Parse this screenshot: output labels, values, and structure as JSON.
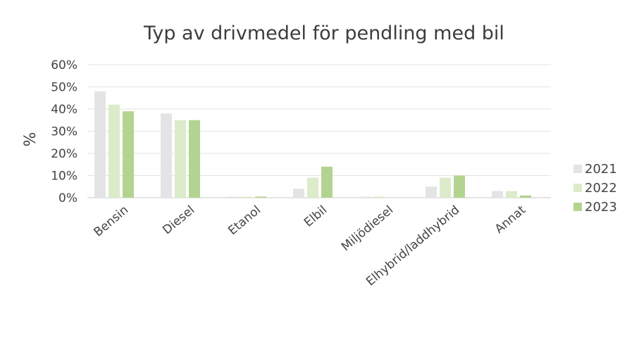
{
  "chart_data": {
    "type": "bar",
    "title": "Typ av drivmedel för pendling med bil",
    "xlabel": "",
    "ylabel": "%",
    "ylim": [
      0,
      60
    ],
    "yticks": [
      "0%",
      "10%",
      "20%",
      "30%",
      "40%",
      "50%",
      "60%"
    ],
    "grid": true,
    "legend_position": "right",
    "categories": [
      "Bensin",
      "Diesel",
      "Etanol",
      "Elbil",
      "Miljödiesel",
      "Elhybrid/laddhybrid",
      "Annat"
    ],
    "series": [
      {
        "name": "2021",
        "color": "#e4e4e6",
        "values": [
          48,
          38,
          0.5,
          4,
          0.5,
          5,
          3
        ]
      },
      {
        "name": "2022",
        "color": "#dcebc9",
        "values": [
          42,
          35,
          0.5,
          9,
          0.5,
          9,
          3
        ]
      },
      {
        "name": "2023",
        "color": "#b3d490",
        "values": [
          39,
          35,
          0.5,
          14,
          0,
          10,
          1
        ]
      }
    ]
  }
}
